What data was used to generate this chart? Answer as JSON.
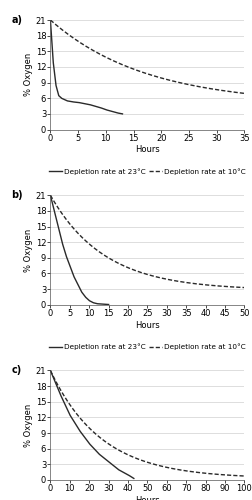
{
  "panels": [
    {
      "label": "a)",
      "xlim": [
        0,
        35
      ],
      "xticks": [
        0,
        5,
        10,
        15,
        20,
        25,
        30,
        35
      ],
      "ylim": [
        0,
        21
      ],
      "yticks": [
        0,
        3,
        6,
        9,
        12,
        15,
        18,
        21
      ],
      "solid_x": [
        0,
        0.5,
        1,
        1.5,
        2,
        3,
        4,
        5,
        6,
        7,
        8,
        9,
        10,
        11,
        12,
        13
      ],
      "solid_y": [
        21,
        13,
        8.5,
        6.5,
        6.0,
        5.5,
        5.3,
        5.2,
        5.0,
        4.8,
        4.5,
        4.2,
        3.8,
        3.5,
        3.2,
        3.0
      ],
      "dashed_decay": 0.058,
      "dashed_end_y": 4.8,
      "dashed_x_end": 35
    },
    {
      "label": "b)",
      "xlim": [
        0,
        50
      ],
      "xticks": [
        0,
        5,
        10,
        15,
        20,
        25,
        30,
        35,
        40,
        45,
        50
      ],
      "ylim": [
        0,
        21
      ],
      "yticks": [
        0,
        3,
        6,
        9,
        12,
        15,
        18,
        21
      ],
      "solid_x": [
        0,
        1,
        2,
        3,
        4,
        5,
        6,
        7,
        8,
        9,
        10,
        11,
        12,
        13,
        14,
        15
      ],
      "solid_y": [
        21,
        18,
        15,
        12,
        9.5,
        7.5,
        5.5,
        4.0,
        2.5,
        1.5,
        0.8,
        0.4,
        0.2,
        0.15,
        0.1,
        0.05
      ],
      "dashed_decay": 0.072,
      "dashed_end_y": 2.8,
      "dashed_x_end": 50
    },
    {
      "label": "c)",
      "xlim": [
        0,
        100
      ],
      "xticks": [
        0,
        10,
        20,
        30,
        40,
        50,
        60,
        70,
        80,
        90,
        100
      ],
      "ylim": [
        0,
        21
      ],
      "yticks": [
        0,
        3,
        6,
        9,
        12,
        15,
        18,
        21
      ],
      "solid_x": [
        0,
        5,
        10,
        15,
        20,
        25,
        30,
        35,
        40,
        43
      ],
      "solid_y": [
        21,
        16.5,
        12.5,
        9.5,
        7.0,
        5.0,
        3.5,
        2.0,
        1.0,
        0.3
      ],
      "dashed_decay": 0.038,
      "dashed_end_y": 0.3,
      "dashed_x_end": 100
    }
  ],
  "ylabel": "% Oxygen",
  "xlabel": "Hours",
  "legend_solid": "Depletion rate at 23°C",
  "legend_dashed": "Depletion rate at 10°C",
  "line_color": "#2a2a2a",
  "bg_color": "#ffffff",
  "fontsize": 6,
  "legend_fontsize": 5.2
}
